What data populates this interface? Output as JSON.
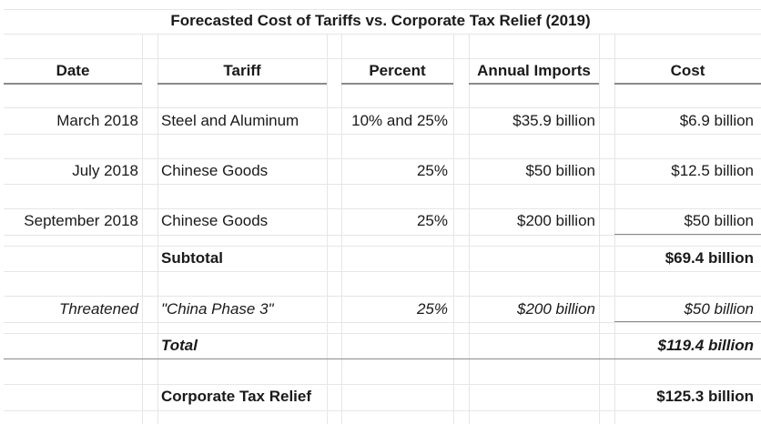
{
  "title": "Forecasted Cost of Tariffs vs. Corporate Tax Relief (2019)",
  "columns": [
    "Date",
    "Tariff",
    "Percent",
    "Annual Imports",
    "Cost"
  ],
  "rows": [
    {
      "date": "March 2018",
      "tariff": "Steel and Aluminum",
      "percent": "10% and 25%",
      "imports": "$35.9 billion",
      "cost": "$6.9 billion"
    },
    {
      "date": "July 2018",
      "tariff": "Chinese Goods",
      "percent": "25%",
      "imports": "$50 billion",
      "cost": "$12.5 billion"
    },
    {
      "date": "September 2018",
      "tariff": "Chinese Goods",
      "percent": "25%",
      "imports": "$200 billion",
      "cost": "$50 billion"
    }
  ],
  "subtotal": {
    "label": "Subtotal",
    "cost": "$69.4 billion"
  },
  "threatened": {
    "date": "Threatened",
    "tariff": "\"China Phase 3\"",
    "percent": "25%",
    "imports": "$200 billion",
    "cost": "$50 billion"
  },
  "total": {
    "label": "Total",
    "cost": "$119.4 billion"
  },
  "tax_relief": {
    "label": "Corporate Tax Relief",
    "cost": "$125.3 billion"
  }
}
